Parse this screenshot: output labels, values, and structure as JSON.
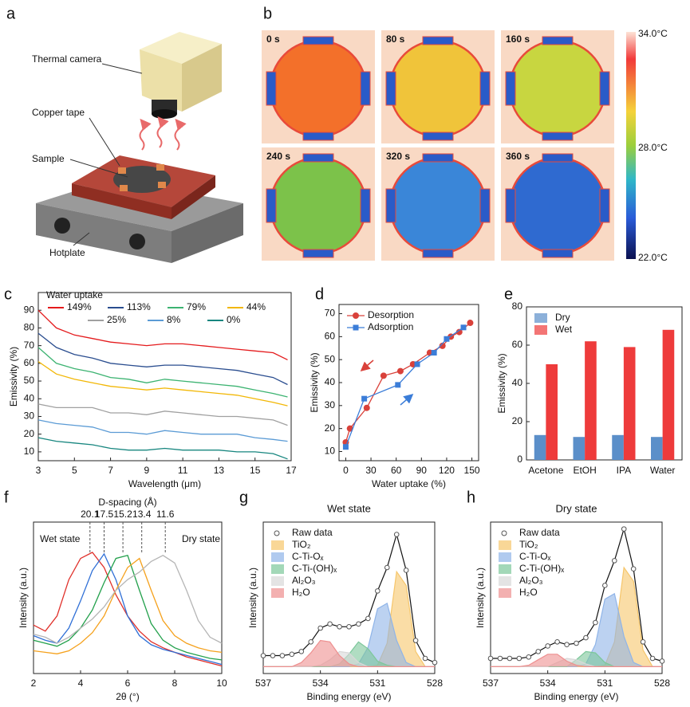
{
  "panel_a": {
    "label": "a",
    "camera": "Thermal camera",
    "tape": "Copper tape",
    "sample": "Sample",
    "hotplate": "Hotplate"
  },
  "panel_b": {
    "label": "b",
    "frames": [
      {
        "time": "0 s",
        "color": "#f3702a"
      },
      {
        "time": "80 s",
        "color": "#f0c43a"
      },
      {
        "time": "160 s",
        "color": "#c8d640"
      },
      {
        "time": "240 s",
        "color": "#7cc24a"
      },
      {
        "time": "320 s",
        "color": "#3a86d8"
      },
      {
        "time": "360 s",
        "color": "#2f6ad0"
      }
    ],
    "colorbar": {
      "max": "34.0°C",
      "mid": "28.0°C",
      "min": "22.0°C"
    }
  },
  "chart_data": [
    {
      "panel": "c",
      "type": "line",
      "legend_title": "Water uptake",
      "legend": "top",
      "xlabel": "Wavelength (μm)",
      "ylabel": "Emissivity (%)",
      "x": [
        3,
        4,
        5,
        6,
        7,
        8,
        9,
        10,
        11,
        12,
        13,
        14,
        15,
        16,
        16.8
      ],
      "xlim": [
        3,
        17
      ],
      "xticks": [
        3,
        5,
        7,
        9,
        11,
        13,
        15,
        17
      ],
      "ylim": [
        5,
        100
      ],
      "yticks": [
        10,
        20,
        30,
        40,
        50,
        60,
        70,
        80,
        90
      ],
      "series": [
        {
          "name": "149%",
          "color": "#e41a1c",
          "values": [
            90,
            80,
            76,
            74,
            72,
            71,
            70,
            71,
            71,
            70,
            69,
            68,
            67,
            66,
            62
          ]
        },
        {
          "name": "113%",
          "color": "#2a4d8f",
          "values": [
            77,
            69,
            65,
            63,
            60,
            59,
            58,
            59,
            59,
            58,
            57,
            56,
            54,
            52,
            48
          ]
        },
        {
          "name": "79%",
          "color": "#3cb371",
          "values": [
            69,
            60,
            57,
            55,
            52,
            51,
            49,
            51,
            50,
            49,
            48,
            47,
            45,
            43,
            41
          ]
        },
        {
          "name": "44%",
          "color": "#f2b705",
          "values": [
            61,
            54,
            51,
            49,
            47,
            46,
            45,
            46,
            45,
            44,
            43,
            42,
            40,
            38,
            36
          ]
        },
        {
          "name": "25%",
          "color": "#a0a0a0",
          "values": [
            37,
            35,
            35,
            35,
            32,
            32,
            31,
            33,
            32,
            31,
            30,
            30,
            29,
            28,
            25
          ]
        },
        {
          "name": "8%",
          "color": "#5b9bd5",
          "values": [
            28,
            26,
            25,
            24,
            21,
            21,
            20,
            22,
            21,
            20,
            20,
            20,
            18,
            17,
            16
          ]
        },
        {
          "name": "0%",
          "color": "#17867f",
          "values": [
            18,
            16,
            15,
            14,
            12,
            11,
            11,
            12,
            11,
            11,
            11,
            10,
            10,
            9,
            6
          ]
        }
      ]
    },
    {
      "panel": "d",
      "type": "line",
      "legend": "upper left",
      "xlabel": "Water uptake (%)",
      "ylabel": "Emissivity (%)",
      "xlim": [
        -8,
        158
      ],
      "xticks": [
        0,
        30,
        60,
        90,
        120,
        150
      ],
      "ylim": [
        6,
        74
      ],
      "yticks": [
        10,
        20,
        30,
        40,
        50,
        60,
        70
      ],
      "series": [
        {
          "name": "Desorption",
          "color": "#d9413a",
          "marker": "circle",
          "x": [
            0,
            5,
            25,
            45,
            65,
            80,
            100,
            115,
            125,
            135,
            148
          ],
          "values": [
            14,
            20,
            29,
            43,
            45,
            48,
            53,
            56,
            60,
            62,
            66
          ]
        },
        {
          "name": "Adsorption",
          "color": "#3b7dd8",
          "marker": "square",
          "x": [
            0,
            22,
            62,
            85,
            105,
            120,
            140
          ],
          "values": [
            12,
            33,
            39,
            48,
            53,
            59,
            64
          ]
        }
      ]
    },
    {
      "panel": "e",
      "type": "bar",
      "legend": "upper left",
      "ylabel": "Emissivity (%)",
      "categories": [
        "Acetone",
        "EtOH",
        "IPA",
        "Water"
      ],
      "ylim": [
        0,
        80
      ],
      "yticks": [
        0,
        20,
        40,
        60,
        80
      ],
      "series": [
        {
          "name": "Dry",
          "color": "#5b8fc9",
          "values": [
            13,
            12,
            13,
            12
          ]
        },
        {
          "name": "Wet",
          "color": "#ee3b3b",
          "values": [
            50,
            62,
            59,
            68
          ]
        }
      ]
    },
    {
      "panel": "f",
      "type": "line",
      "xlabel": "2θ (°)",
      "ylabel": "Intensity (a.u.)",
      "x": [
        2,
        2.5,
        3,
        3.5,
        4,
        4.5,
        5,
        5.5,
        6,
        6.5,
        7,
        7.5,
        8,
        8.5,
        9,
        9.5,
        10
      ],
      "xlim": [
        2,
        10
      ],
      "xticks": [
        2,
        4,
        6,
        8,
        10
      ],
      "ylim": [
        0,
        1
      ],
      "top_axis": {
        "label": "D-spacing (Å)",
        "ticks": [
          {
            "value": 20.1,
            "x": 4.4
          },
          {
            "value": 17.5,
            "x": 5.0
          },
          {
            "value": 15.2,
            "x": 5.8
          },
          {
            "value": 13.4,
            "x": 6.6
          },
          {
            "value": 11.6,
            "x": 7.6
          }
        ]
      },
      "annotations": [
        "Wet state",
        "Dry state"
      ],
      "series": [
        {
          "color": "#e0302a",
          "values": [
            0.32,
            0.28,
            0.38,
            0.62,
            0.76,
            0.8,
            0.7,
            0.52,
            0.38,
            0.28,
            0.21,
            0.17,
            0.14,
            0.11,
            0.09,
            0.07,
            0.05
          ]
        },
        {
          "color": "#2f6fd6",
          "values": [
            0.25,
            0.22,
            0.2,
            0.3,
            0.48,
            0.68,
            0.79,
            0.62,
            0.38,
            0.25,
            0.19,
            0.16,
            0.14,
            0.12,
            0.1,
            0.08,
            0.06
          ]
        },
        {
          "color": "#22a04b",
          "values": [
            0.22,
            0.2,
            0.18,
            0.22,
            0.3,
            0.42,
            0.6,
            0.76,
            0.78,
            0.55,
            0.33,
            0.22,
            0.17,
            0.14,
            0.12,
            0.1,
            0.09
          ]
        },
        {
          "color": "#f5a11c",
          "values": [
            0.15,
            0.14,
            0.13,
            0.15,
            0.2,
            0.27,
            0.38,
            0.55,
            0.7,
            0.76,
            0.55,
            0.35,
            0.25,
            0.2,
            0.17,
            0.15,
            0.14
          ]
        },
        {
          "color": "#b5b5b5",
          "values": [
            0.26,
            0.24,
            0.2,
            0.24,
            0.3,
            0.36,
            0.44,
            0.55,
            0.62,
            0.67,
            0.74,
            0.78,
            0.73,
            0.55,
            0.35,
            0.24,
            0.2
          ]
        }
      ]
    },
    {
      "panel": "g",
      "type": "area",
      "title": "Wet state",
      "legend": "upper left",
      "xlabel": "Binding energy (eV)",
      "ylabel": "Intensity (a.u.)",
      "x": [
        537,
        536.5,
        536,
        535.5,
        535,
        534.5,
        534,
        533.5,
        533,
        532.5,
        532,
        531.5,
        531,
        530.5,
        530,
        529.5,
        529,
        528.5,
        528
      ],
      "xlim": [
        537,
        528
      ],
      "xticks": [
        537,
        534,
        531,
        528
      ],
      "ylim": [
        -0.05,
        1.05
      ],
      "series": [
        {
          "name": "Raw data",
          "kind": "scatter",
          "color": "#555555",
          "values": [
            0.08,
            0.08,
            0.08,
            0.09,
            0.11,
            0.18,
            0.28,
            0.31,
            0.29,
            0.29,
            0.31,
            0.35,
            0.55,
            0.72,
            0.96,
            0.7,
            0.19,
            0.06,
            0.03
          ]
        },
        {
          "name": "TiO₂",
          "color": "#f6c66b",
          "values": [
            0,
            0,
            0,
            0,
            0,
            0,
            0,
            0,
            0,
            0,
            0,
            0,
            0.01,
            0.17,
            0.69,
            0.59,
            0.11,
            0,
            0
          ]
        },
        {
          "name": "C-Ti-Oₓ",
          "color": "#8fb4e8",
          "values": [
            0,
            0,
            0,
            0,
            0,
            0,
            0,
            0,
            0,
            0,
            0.02,
            0.14,
            0.42,
            0.46,
            0.19,
            0.03,
            0,
            0,
            0
          ]
        },
        {
          "name": "C-Ti-(OH)ₓ",
          "color": "#7cc79a",
          "values": [
            0,
            0,
            0,
            0,
            0,
            0,
            0,
            0,
            0.02,
            0.09,
            0.18,
            0.13,
            0.04,
            0.01,
            0,
            0,
            0,
            0,
            0
          ]
        },
        {
          "name": "Al₂O₃",
          "color": "#d8d8d8",
          "values": [
            0,
            0,
            0,
            0,
            0,
            0,
            0.01,
            0.05,
            0.11,
            0.1,
            0.03,
            0,
            0,
            0,
            0,
            0,
            0,
            0,
            0
          ]
        },
        {
          "name": "H₂O",
          "color": "#ee8f8f",
          "values": [
            0,
            0,
            0,
            0,
            0.03,
            0.1,
            0.19,
            0.18,
            0.08,
            0.02,
            0,
            0,
            0,
            0,
            0,
            0,
            0,
            0,
            0
          ]
        }
      ]
    },
    {
      "panel": "h",
      "type": "area",
      "title": "Dry state",
      "legend": "upper left",
      "xlabel": "Binding energy (eV)",
      "ylabel": "Intensity (a.u.)",
      "x": [
        537,
        536.5,
        536,
        535.5,
        535,
        534.5,
        534,
        533.5,
        533,
        532.5,
        532,
        531.5,
        531,
        530.5,
        530,
        529.5,
        529,
        528.5,
        528
      ],
      "xlim": [
        537,
        528
      ],
      "xticks": [
        537,
        534,
        531,
        528
      ],
      "ylim": [
        -0.05,
        1.05
      ],
      "series": [
        {
          "name": "Raw data",
          "kind": "scatter",
          "color": "#555555",
          "values": [
            0.06,
            0.06,
            0.06,
            0.06,
            0.07,
            0.11,
            0.15,
            0.18,
            0.16,
            0.17,
            0.21,
            0.32,
            0.59,
            0.77,
            1.0,
            0.71,
            0.18,
            0.06,
            0.04
          ]
        },
        {
          "name": "TiO₂",
          "color": "#f6c66b",
          "values": [
            0,
            0,
            0,
            0,
            0,
            0,
            0,
            0,
            0,
            0,
            0,
            0,
            0.01,
            0.18,
            0.72,
            0.62,
            0.12,
            0,
            0
          ]
        },
        {
          "name": "C-Ti-Oₓ",
          "color": "#8fb4e8",
          "values": [
            0,
            0,
            0,
            0,
            0,
            0,
            0,
            0,
            0,
            0,
            0.02,
            0.16,
            0.49,
            0.53,
            0.22,
            0.03,
            0,
            0,
            0
          ]
        },
        {
          "name": "C-Ti-(OH)ₓ",
          "color": "#7cc79a",
          "values": [
            0,
            0,
            0,
            0,
            0,
            0,
            0,
            0,
            0,
            0.05,
            0.11,
            0.1,
            0.03,
            0,
            0,
            0,
            0,
            0,
            0
          ]
        },
        {
          "name": "Al₂O₃",
          "color": "#d8d8d8",
          "values": [
            0,
            0,
            0,
            0,
            0,
            0,
            0,
            0.03,
            0.06,
            0.05,
            0.02,
            0,
            0,
            0,
            0,
            0,
            0,
            0,
            0
          ]
        },
        {
          "name": "H₂O",
          "color": "#ee8f8f",
          "values": [
            0,
            0,
            0,
            0,
            0.01,
            0.05,
            0.09,
            0.09,
            0.04,
            0.01,
            0,
            0,
            0,
            0,
            0,
            0,
            0,
            0,
            0
          ]
        }
      ]
    }
  ]
}
